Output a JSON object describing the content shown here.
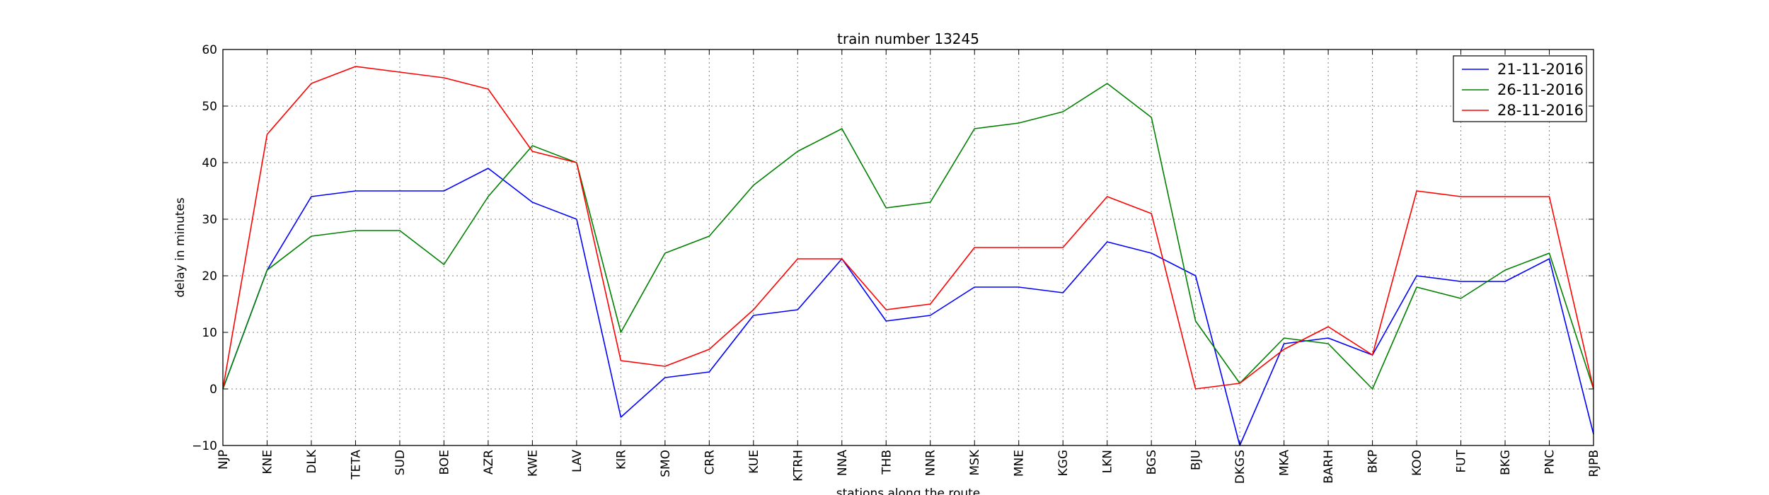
{
  "chart_data": {
    "type": "line",
    "title": "train number 13245",
    "xlabel": "stations along the route",
    "ylabel": "delay in minutes",
    "ylim": [
      -10,
      60
    ],
    "yticks": [
      -10,
      0,
      10,
      20,
      30,
      40,
      50,
      60
    ],
    "grid": true,
    "legend_position": "top-right",
    "categories": [
      "NJP",
      "KNE",
      "DLK",
      "TETA",
      "SUD",
      "BOE",
      "AZR",
      "KWE",
      "LAV",
      "KIR",
      "SMO",
      "CRR",
      "KUE",
      "KTRH",
      "NNA",
      "THB",
      "NNR",
      "MSK",
      "MNE",
      "KGG",
      "LKN",
      "BGS",
      "BJU",
      "DKGS",
      "MKA",
      "BARH",
      "BKP",
      "KOO",
      "FUT",
      "BKG",
      "PNC",
      "RJPB"
    ],
    "series": [
      {
        "name": "21-11-2016",
        "color": "#0000ff",
        "values": [
          0,
          21,
          34,
          35,
          35,
          35,
          39,
          33,
          30,
          -5,
          2,
          3,
          13,
          14,
          23,
          12,
          13,
          18,
          18,
          17,
          26,
          24,
          20,
          -10,
          8,
          9,
          6,
          20,
          19,
          19,
          23,
          -8
        ]
      },
      {
        "name": "26-11-2016",
        "color": "#008000",
        "values": [
          0,
          21,
          27,
          28,
          28,
          22,
          34,
          43,
          40,
          10,
          24,
          27,
          36,
          42,
          46,
          32,
          33,
          46,
          47,
          49,
          54,
          48,
          12,
          1,
          9,
          8,
          0,
          18,
          16,
          21,
          24,
          0
        ]
      },
      {
        "name": "28-11-2016",
        "color": "#ff0000",
        "values": [
          0,
          45,
          54,
          57,
          56,
          55,
          53,
          42,
          40,
          5,
          4,
          7,
          14,
          23,
          23,
          14,
          15,
          25,
          25,
          25,
          34,
          31,
          0,
          1,
          7,
          11,
          6,
          35,
          34,
          34,
          34,
          0
        ]
      }
    ]
  }
}
